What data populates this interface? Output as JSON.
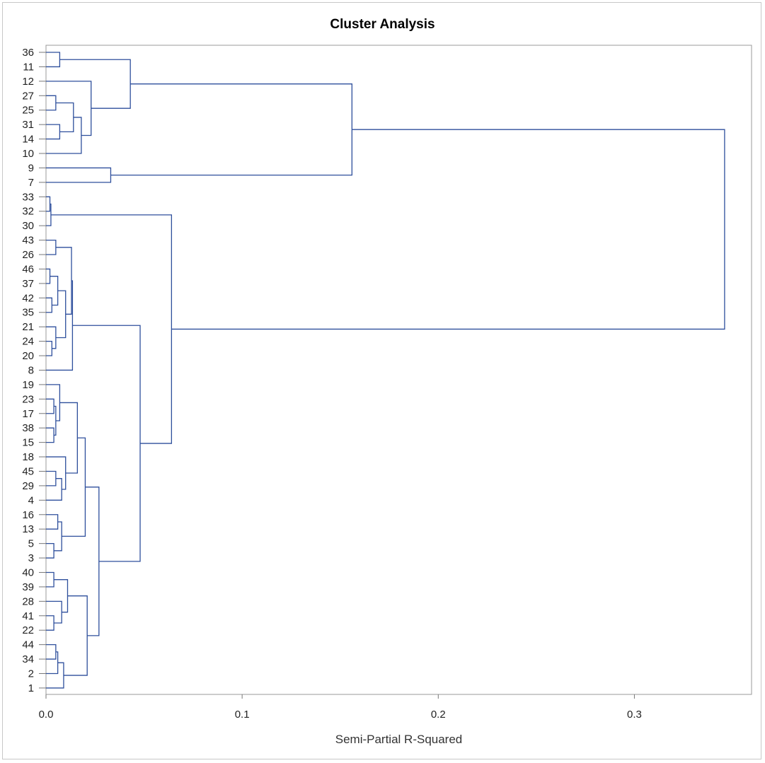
{
  "chart_data": {
    "type": "dendrogram",
    "title": "Cluster Analysis",
    "xlabel": "Semi-Partial R-Squared",
    "ylabel": "",
    "xlim": [
      0.0,
      0.35
    ],
    "x_ticks": [
      "0.0",
      "0.1",
      "0.2",
      "0.3"
    ],
    "x_tick_values": [
      0.0,
      0.1,
      0.2,
      0.3
    ],
    "orientation": "horizontal",
    "grid": false,
    "line_color": "#2e4f9c",
    "leaf_order": [
      "36",
      "11",
      "12",
      "27",
      "25",
      "31",
      "14",
      "10",
      "9",
      "7",
      "33",
      "32",
      "30",
      "43",
      "26",
      "46",
      "37",
      "42",
      "35",
      "21",
      "24",
      "20",
      "8",
      "19",
      "23",
      "17",
      "38",
      "15",
      "18",
      "45",
      "29",
      "4",
      "16",
      "13",
      "5",
      "3",
      "40",
      "39",
      "28",
      "41",
      "22",
      "44",
      "34",
      "2",
      "1"
    ],
    "merges": [
      {
        "left": "36",
        "right": "11",
        "height": 0.007
      },
      {
        "left": "27",
        "right": "25",
        "height": 0.005
      },
      {
        "left": "31",
        "right": "14",
        "height": 0.007
      },
      {
        "left": "27+25",
        "right": "31+14",
        "height": 0.014
      },
      {
        "left": "27..14",
        "right": "10",
        "height": 0.018
      },
      {
        "left": "12",
        "right": "27..10",
        "height": 0.023
      },
      {
        "left": "36+11",
        "right": "12..10",
        "height": 0.043
      },
      {
        "left": "9",
        "right": "7",
        "height": 0.033
      },
      {
        "left": "36..10",
        "right": "9+7",
        "height": 0.156
      },
      {
        "left": "33",
        "right": "32",
        "height": 0.002
      },
      {
        "left": "33+32",
        "right": "30",
        "height": 0.0025
      },
      {
        "left": "43",
        "right": "26",
        "height": 0.005
      },
      {
        "left": "46",
        "right": "37",
        "height": 0.002
      },
      {
        "left": "42",
        "right": "35",
        "height": 0.003
      },
      {
        "left": "46+37",
        "right": "42+35",
        "height": 0.006
      },
      {
        "left": "24",
        "right": "20",
        "height": 0.003
      },
      {
        "left": "21",
        "right": "24+20",
        "height": 0.005
      },
      {
        "left": "46..35",
        "right": "21..20",
        "height": 0.01
      },
      {
        "left": "43+26",
        "right": "46..20",
        "height": 0.013
      },
      {
        "left": "43..20",
        "right": "8",
        "height": 0.0135
      },
      {
        "left": "23",
        "right": "17",
        "height": 0.004
      },
      {
        "left": "38",
        "right": "15",
        "height": 0.004
      },
      {
        "left": "23+17",
        "right": "38+15",
        "height": 0.005
      },
      {
        "left": "19",
        "right": "23..15",
        "height": 0.007
      },
      {
        "left": "45",
        "right": "29",
        "height": 0.005
      },
      {
        "left": "45+29",
        "right": "4",
        "height": 0.008
      },
      {
        "left": "18",
        "right": "45..4",
        "height": 0.01
      },
      {
        "left": "19..15",
        "right": "18..4",
        "height": 0.016
      },
      {
        "left": "16",
        "right": "13",
        "height": 0.006
      },
      {
        "left": "5",
        "right": "3",
        "height": 0.004
      },
      {
        "left": "16+13",
        "right": "5+3",
        "height": 0.008
      },
      {
        "left": "19..4",
        "right": "16..3",
        "height": 0.02
      },
      {
        "left": "40",
        "right": "39",
        "height": 0.004
      },
      {
        "left": "41",
        "right": "22",
        "height": 0.004
      },
      {
        "left": "28",
        "right": "41+22",
        "height": 0.008
      },
      {
        "left": "40+39",
        "right": "28..22",
        "height": 0.011
      },
      {
        "left": "44",
        "right": "34",
        "height": 0.005
      },
      {
        "left": "44+34",
        "right": "2",
        "height": 0.006
      },
      {
        "left": "44..2",
        "right": "1",
        "height": 0.009
      },
      {
        "left": "40..22",
        "right": "44..1",
        "height": 0.021
      },
      {
        "left": "19..3",
        "right": "40..1",
        "height": 0.027
      },
      {
        "left": "43..8",
        "right": "19..1",
        "height": 0.048
      },
      {
        "left": "33..30",
        "right": "43..1",
        "height": 0.064
      },
      {
        "left": "36..7",
        "right": "33..1",
        "height": 0.346
      }
    ]
  }
}
